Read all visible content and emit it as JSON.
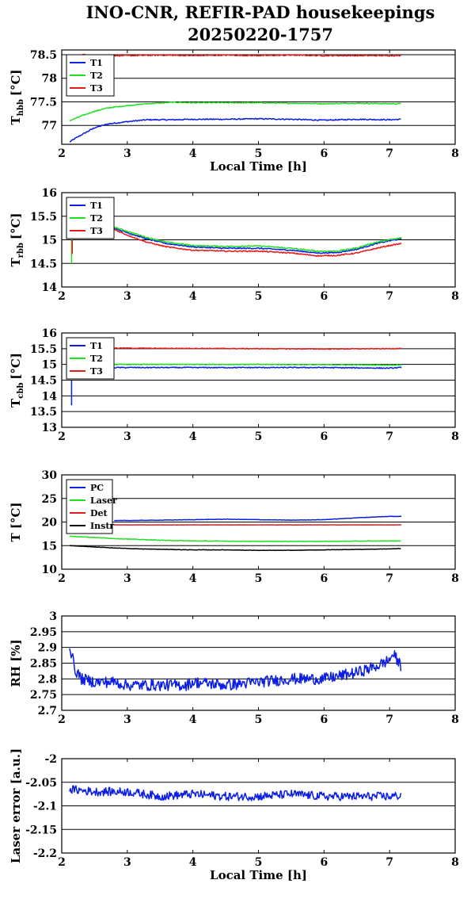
{
  "figure": {
    "title_line1": "INO-CNR, REFIR-PAD housekeepings",
    "title_line2": "20250220-1757"
  },
  "colors": {
    "blue": "#0a1ee6",
    "green": "#20e020",
    "red": "#e61a1a",
    "black": "#000000"
  },
  "chart_data": [
    {
      "id": "hbb",
      "type": "line",
      "ylabel_main": "T",
      "ylabel_sub": "hbb",
      "ylabel_unit": "[°C]",
      "xlabel": "Local Time [h]",
      "xlim": [
        2,
        8
      ],
      "ylim": [
        76.6,
        78.6
      ],
      "xticks": [
        "2",
        "3",
        "4",
        "5",
        "6",
        "7",
        "8"
      ],
      "yticks": [
        {
          "v": 77,
          "label": "77"
        },
        {
          "v": 77.5,
          "label": "77.5"
        },
        {
          "v": 78,
          "label": "78"
        },
        {
          "v": 78.5,
          "label": "78.5"
        }
      ],
      "grid": true,
      "legend": "top-left",
      "series": [
        {
          "name": "T1",
          "color": "blue",
          "noise": 0.012,
          "x": [
            2.12,
            2.2,
            2.3,
            2.5,
            2.7,
            3.0,
            3.3,
            3.7,
            4.0,
            4.5,
            5.0,
            5.5,
            6.0,
            6.5,
            7.0,
            7.18
          ],
          "y": [
            76.65,
            76.72,
            76.8,
            76.95,
            77.03,
            77.08,
            77.12,
            77.12,
            77.13,
            77.13,
            77.14,
            77.13,
            77.11,
            77.13,
            77.12,
            77.13
          ]
        },
        {
          "name": "T2",
          "color": "green",
          "noise": 0.01,
          "x": [
            2.12,
            2.3,
            2.5,
            2.7,
            3.0,
            3.3,
            3.7,
            4.0,
            4.5,
            5.0,
            5.5,
            6.0,
            6.5,
            7.0,
            7.18
          ],
          "y": [
            77.1,
            77.2,
            77.3,
            77.37,
            77.42,
            77.46,
            77.49,
            77.48,
            77.48,
            77.48,
            77.47,
            77.46,
            77.47,
            77.46,
            77.46
          ]
        },
        {
          "name": "T3",
          "color": "red",
          "noise": 0.012,
          "x": [
            2.3,
            2.5,
            3.0,
            3.5,
            4.0,
            4.5,
            5.0,
            5.5,
            6.0,
            6.5,
            7.0,
            7.18
          ],
          "y": [
            78.5,
            78.48,
            78.48,
            78.49,
            78.48,
            78.49,
            78.48,
            78.49,
            78.48,
            78.48,
            78.48,
            78.48
          ]
        }
      ]
    },
    {
      "id": "rbb",
      "type": "line",
      "ylabel_main": "T",
      "ylabel_sub": "rbb",
      "ylabel_unit": "[°C]",
      "xlabel": "",
      "xlim": [
        2,
        8
      ],
      "ylim": [
        14,
        16
      ],
      "xticks": [
        "2",
        "3",
        "4",
        "5",
        "6",
        "7",
        "8"
      ],
      "yticks": [
        {
          "v": 14,
          "label": "14"
        },
        {
          "v": 14.5,
          "label": "14.5"
        },
        {
          "v": 15,
          "label": "15"
        },
        {
          "v": 15.5,
          "label": "15.5"
        },
        {
          "v": 16,
          "label": "16"
        }
      ],
      "grid": true,
      "legend": "top-left",
      "spikes": [
        {
          "color": "green",
          "x": 2.15,
          "y1": 14.5,
          "y2": 15.0
        },
        {
          "color": "red",
          "x": 2.16,
          "y1": 14.7,
          "y2": 15.0
        }
      ],
      "series": [
        {
          "name": "T1",
          "color": "blue",
          "noise": 0.012,
          "x": [
            2.8,
            3.0,
            3.3,
            3.6,
            4.0,
            4.5,
            5.0,
            5.5,
            5.9,
            6.2,
            6.5,
            6.8,
            7.0,
            7.18
          ],
          "y": [
            15.25,
            15.15,
            15.02,
            14.92,
            14.85,
            14.82,
            14.82,
            14.78,
            14.72,
            14.73,
            14.8,
            14.92,
            14.98,
            15.02
          ]
        },
        {
          "name": "T2",
          "color": "green",
          "noise": 0.012,
          "x": [
            2.8,
            3.0,
            3.3,
            3.6,
            4.0,
            4.5,
            5.0,
            5.5,
            5.9,
            6.2,
            6.5,
            6.8,
            7.0,
            7.18
          ],
          "y": [
            15.27,
            15.18,
            15.05,
            14.95,
            14.88,
            14.86,
            14.87,
            14.82,
            14.76,
            14.76,
            14.83,
            14.95,
            15.0,
            15.04
          ]
        },
        {
          "name": "T3",
          "color": "red",
          "noise": 0.012,
          "x": [
            2.8,
            3.0,
            3.3,
            3.6,
            4.0,
            4.5,
            5.0,
            5.5,
            5.9,
            6.2,
            6.5,
            6.8,
            7.0,
            7.18
          ],
          "y": [
            15.22,
            15.1,
            14.95,
            14.85,
            14.78,
            14.76,
            14.76,
            14.72,
            14.66,
            14.67,
            14.72,
            14.82,
            14.88,
            14.92
          ]
        }
      ]
    },
    {
      "id": "cbb",
      "type": "line",
      "ylabel_main": "T",
      "ylabel_sub": "cbb",
      "ylabel_unit": "[°C]",
      "xlabel": "",
      "xlim": [
        2,
        8
      ],
      "ylim": [
        13,
        16
      ],
      "xticks": [
        "2",
        "3",
        "4",
        "5",
        "6",
        "7",
        "8"
      ],
      "yticks": [
        {
          "v": 13,
          "label": "13"
        },
        {
          "v": 13.5,
          "label": "13.5"
        },
        {
          "v": 14,
          "label": "14"
        },
        {
          "v": 14.5,
          "label": "14.5"
        },
        {
          "v": 15,
          "label": "15"
        },
        {
          "v": 15.5,
          "label": "15.5"
        },
        {
          "v": 16,
          "label": "16"
        }
      ],
      "grid": true,
      "legend": "top-left",
      "spikes": [
        {
          "color": "blue",
          "x": 2.15,
          "y1": 13.7,
          "y2": 14.5
        }
      ],
      "series": [
        {
          "name": "T1",
          "color": "blue",
          "noise": 0.015,
          "x": [
            2.8,
            3.5,
            4.0,
            5.0,
            6.0,
            7.0,
            7.18
          ],
          "y": [
            14.9,
            14.9,
            14.9,
            14.9,
            14.9,
            14.88,
            14.9
          ]
        },
        {
          "name": "T2",
          "color": "green",
          "noise": 0.012,
          "x": [
            2.8,
            3.5,
            4.0,
            5.0,
            6.0,
            7.0,
            7.18
          ],
          "y": [
            15.0,
            15.0,
            15.0,
            15.0,
            14.99,
            14.98,
            14.98
          ]
        },
        {
          "name": "T3",
          "color": "red",
          "noise": 0.012,
          "x": [
            2.8,
            3.5,
            4.0,
            5.0,
            6.0,
            7.0,
            7.18
          ],
          "y": [
            15.52,
            15.51,
            15.51,
            15.5,
            15.49,
            15.5,
            15.51
          ]
        }
      ]
    },
    {
      "id": "temps",
      "type": "line",
      "ylabel_main": "T [°C]",
      "ylabel_sub": "",
      "ylabel_unit": "",
      "xlabel": "",
      "xlim": [
        2,
        8
      ],
      "ylim": [
        10,
        30
      ],
      "xticks": [
        "2",
        "3",
        "4",
        "5",
        "6",
        "7",
        "8"
      ],
      "yticks": [
        {
          "v": 10,
          "label": "10"
        },
        {
          "v": 15,
          "label": "15"
        },
        {
          "v": 20,
          "label": "20"
        },
        {
          "v": 25,
          "label": "25"
        },
        {
          "v": 30,
          "label": "30"
        }
      ],
      "grid": true,
      "legend": "top-left",
      "series": [
        {
          "name": "PC",
          "color": "blue",
          "noise": 0.04,
          "x": [
            2.8,
            3.5,
            4.0,
            4.5,
            5.0,
            5.5,
            6.0,
            6.5,
            7.0,
            7.18
          ],
          "y": [
            20.3,
            20.4,
            20.5,
            20.6,
            20.5,
            20.4,
            20.5,
            20.9,
            21.2,
            21.2
          ]
        },
        {
          "name": "Laser",
          "color": "green",
          "noise": 0.05,
          "x": [
            2.12,
            2.4,
            2.8,
            3.2,
            3.6,
            4.0,
            5.0,
            6.0,
            7.0,
            7.18
          ],
          "y": [
            17.0,
            16.8,
            16.5,
            16.3,
            16.1,
            16.0,
            15.9,
            15.9,
            16.0,
            16.0
          ]
        },
        {
          "name": "Det",
          "color": "red",
          "noise": 0.02,
          "x": [
            2.8,
            4.0,
            5.0,
            6.0,
            7.0,
            7.18
          ],
          "y": [
            19.4,
            19.4,
            19.4,
            19.4,
            19.4,
            19.4
          ]
        },
        {
          "name": "Instr",
          "color": "black",
          "noise": 0.04,
          "x": [
            2.12,
            2.4,
            2.8,
            3.2,
            3.6,
            4.0,
            4.5,
            5.0,
            5.5,
            6.0,
            6.5,
            7.0,
            7.18
          ],
          "y": [
            15.0,
            14.8,
            14.5,
            14.3,
            14.2,
            14.1,
            14.1,
            14.0,
            14.0,
            14.1,
            14.2,
            14.3,
            14.4
          ]
        }
      ]
    },
    {
      "id": "rh",
      "type": "line",
      "ylabel_main": "RH [%]",
      "ylabel_sub": "",
      "ylabel_unit": "",
      "xlabel": "",
      "xlim": [
        2,
        8
      ],
      "ylim": [
        2.7,
        3
      ],
      "xticks": [
        "2",
        "3",
        "4",
        "5",
        "6",
        "7",
        "8"
      ],
      "yticks": [
        {
          "v": 2.7,
          "label": "2.7"
        },
        {
          "v": 2.75,
          "label": "2.75"
        },
        {
          "v": 2.8,
          "label": "2.8"
        },
        {
          "v": 2.85,
          "label": "2.85"
        },
        {
          "v": 2.9,
          "label": "2.9"
        },
        {
          "v": 2.95,
          "label": "2.95"
        },
        {
          "v": 3,
          "label": "3"
        }
      ],
      "grid": true,
      "legend": "",
      "series": [
        {
          "name": "",
          "color": "blue",
          "noise": 0.018,
          "x": [
            2.12,
            2.15,
            2.2,
            2.3,
            2.5,
            2.8,
            3.0,
            3.5,
            3.9,
            4.0,
            4.5,
            5.0,
            5.5,
            6.0,
            6.5,
            6.8,
            7.0,
            7.05,
            7.18
          ],
          "y": [
            2.9,
            2.88,
            2.83,
            2.8,
            2.79,
            2.79,
            2.78,
            2.78,
            2.78,
            2.79,
            2.78,
            2.79,
            2.8,
            2.8,
            2.82,
            2.84,
            2.86,
            2.88,
            2.84
          ]
        }
      ]
    },
    {
      "id": "laser",
      "type": "line",
      "ylabel_main": "Laser error [a.u.]",
      "ylabel_sub": "",
      "ylabel_unit": "",
      "xlabel": "Local Time [h]",
      "xlim": [
        2,
        8
      ],
      "ylim": [
        -2.2,
        -2
      ],
      "xticks": [
        "2",
        "3",
        "4",
        "5",
        "6",
        "7",
        "8"
      ],
      "yticks": [
        {
          "v": -2.2,
          "label": "-2.2"
        },
        {
          "v": -2.15,
          "label": "-2.15"
        },
        {
          "v": -2.1,
          "label": "-2.1"
        },
        {
          "v": -2.05,
          "label": "-2.05"
        },
        {
          "v": -2,
          "label": "-2"
        }
      ],
      "grid": true,
      "legend": "",
      "series": [
        {
          "name": "",
          "color": "blue",
          "noise": 0.009,
          "x": [
            2.12,
            2.5,
            3.0,
            3.5,
            4.0,
            4.5,
            5.0,
            5.5,
            6.0,
            6.5,
            7.0,
            7.18
          ],
          "y": [
            -2.065,
            -2.07,
            -2.07,
            -2.08,
            -2.075,
            -2.08,
            -2.08,
            -2.075,
            -2.08,
            -2.08,
            -2.08,
            -2.078
          ]
        }
      ]
    }
  ]
}
